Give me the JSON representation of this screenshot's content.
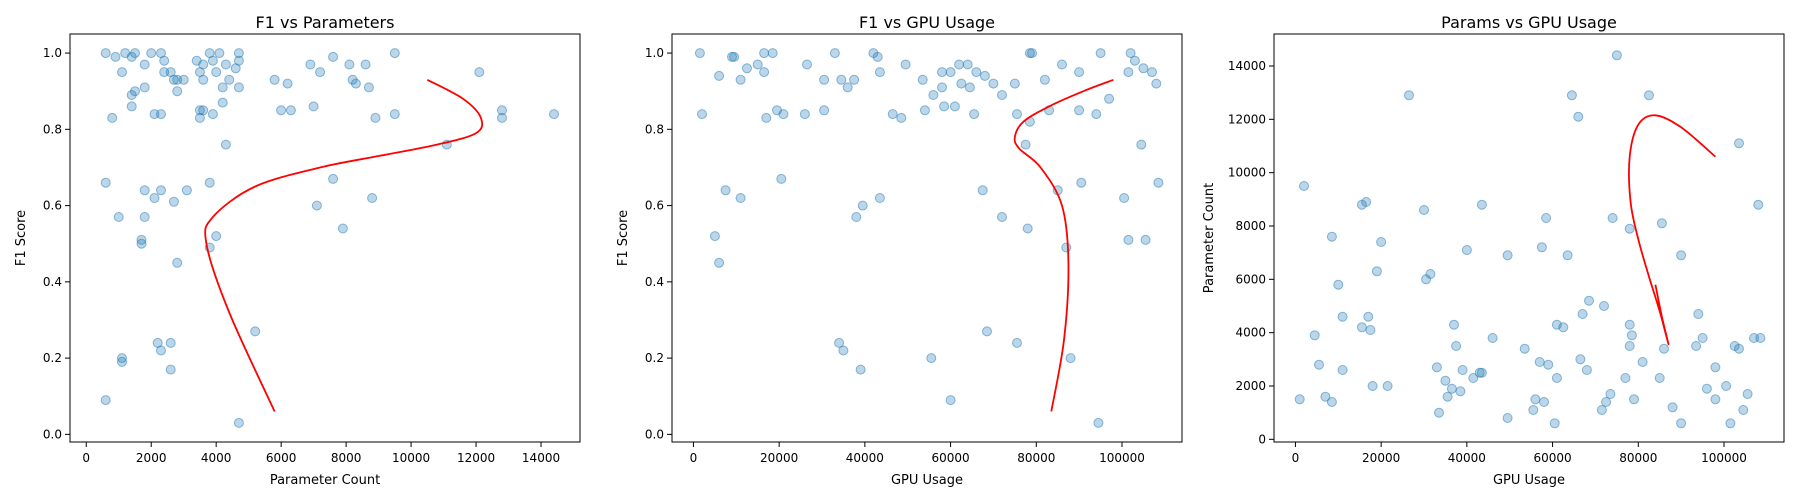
{
  "chart_data": [
    {
      "type": "scatter",
      "title": "F1 vs Parameters",
      "xlabel": "Parameter Count",
      "ylabel": "F1 Score",
      "xlim": [
        -500,
        15200
      ],
      "ylim": [
        -0.02,
        1.05
      ],
      "xticks": [
        0,
        2000,
        4000,
        6000,
        8000,
        10000,
        12000,
        14000
      ],
      "yticks": [
        0.0,
        0.2,
        0.4,
        0.6,
        0.8,
        1.0
      ],
      "ytick_decimals": 1,
      "grid": false,
      "points": [
        [
          600,
          1.0
        ],
        [
          900,
          0.99
        ],
        [
          1200,
          1.0
        ],
        [
          1400,
          0.99
        ],
        [
          1500,
          1.0
        ],
        [
          1800,
          0.97
        ],
        [
          2000,
          1.0
        ],
        [
          2300,
          1.0
        ],
        [
          2400,
          0.98
        ],
        [
          2600,
          0.95
        ],
        [
          2800,
          0.93
        ],
        [
          3400,
          0.98
        ],
        [
          3500,
          0.95
        ],
        [
          3600,
          0.97
        ],
        [
          3800,
          1.0
        ],
        [
          3900,
          0.98
        ],
        [
          4100,
          1.0
        ],
        [
          4300,
          0.97
        ],
        [
          4700,
          1.0
        ],
        [
          4700,
          0.98
        ],
        [
          4600,
          0.96
        ],
        [
          6900,
          0.97
        ],
        [
          7200,
          0.95
        ],
        [
          7600,
          0.99
        ],
        [
          8100,
          0.97
        ],
        [
          8600,
          0.97
        ],
        [
          9500,
          1.0
        ],
        [
          12100,
          0.95
        ],
        [
          1100,
          0.95
        ],
        [
          2700,
          0.93
        ],
        [
          3000,
          0.93
        ],
        [
          3600,
          0.93
        ],
        [
          4000,
          0.95
        ],
        [
          4400,
          0.93
        ],
        [
          5800,
          0.93
        ],
        [
          6200,
          0.92
        ],
        [
          8200,
          0.93
        ],
        [
          8700,
          0.91
        ],
        [
          800,
          0.83
        ],
        [
          1400,
          0.86
        ],
        [
          1400,
          0.89
        ],
        [
          1500,
          0.9
        ],
        [
          1800,
          0.91
        ],
        [
          2100,
          0.84
        ],
        [
          2300,
          0.84
        ],
        [
          2400,
          0.95
        ],
        [
          2800,
          0.9
        ],
        [
          3500,
          0.85
        ],
        [
          3500,
          0.83
        ],
        [
          3600,
          0.85
        ],
        [
          3900,
          0.84
        ],
        [
          4200,
          0.87
        ],
        [
          4200,
          0.91
        ],
        [
          4700,
          0.91
        ],
        [
          6000,
          0.85
        ],
        [
          6300,
          0.85
        ],
        [
          7000,
          0.86
        ],
        [
          8300,
          0.92
        ],
        [
          8900,
          0.83
        ],
        [
          9500,
          0.84
        ],
        [
          12800,
          0.85
        ],
        [
          12800,
          0.83
        ],
        [
          14400,
          0.84
        ],
        [
          4300,
          0.76
        ],
        [
          11100,
          0.76
        ],
        [
          600,
          0.66
        ],
        [
          1800,
          0.64
        ],
        [
          2300,
          0.64
        ],
        [
          3100,
          0.64
        ],
        [
          3800,
          0.66
        ],
        [
          7600,
          0.67
        ],
        [
          1000,
          0.57
        ],
        [
          1800,
          0.57
        ],
        [
          2100,
          0.62
        ],
        [
          2700,
          0.61
        ],
        [
          7100,
          0.6
        ],
        [
          8800,
          0.62
        ],
        [
          1700,
          0.51
        ],
        [
          1700,
          0.5
        ],
        [
          4000,
          0.52
        ],
        [
          3800,
          0.49
        ],
        [
          2800,
          0.45
        ],
        [
          7900,
          0.54
        ],
        [
          2200,
          0.24
        ],
        [
          2300,
          0.22
        ],
        [
          2600,
          0.24
        ],
        [
          5200,
          0.27
        ],
        [
          1100,
          0.2
        ],
        [
          1100,
          0.19
        ],
        [
          2600,
          0.17
        ],
        [
          600,
          0.09
        ],
        [
          4700,
          0.03
        ]
      ],
      "fit_curve": [
        [
          5800,
          0.06
        ],
        [
          4400,
          0.32
        ],
        [
          3700,
          0.5
        ],
        [
          3900,
          0.57
        ],
        [
          5200,
          0.65
        ],
        [
          7200,
          0.7
        ],
        [
          9000,
          0.73
        ],
        [
          10800,
          0.76
        ],
        [
          12000,
          0.79
        ],
        [
          12150,
          0.83
        ],
        [
          11600,
          0.88
        ],
        [
          10500,
          0.93
        ]
      ]
    },
    {
      "type": "scatter",
      "title": "F1 vs GPU Usage",
      "xlabel": "GPU Usage",
      "ylabel": "F1 Score",
      "xlim": [
        -5000,
        114000
      ],
      "ylim": [
        -0.02,
        1.05
      ],
      "xticks": [
        0,
        20000,
        40000,
        60000,
        80000,
        100000
      ],
      "yticks": [
        0.0,
        0.2,
        0.4,
        0.6,
        0.8,
        1.0
      ],
      "ytick_decimals": 1,
      "grid": false,
      "points": [
        [
          1500,
          1.0
        ],
        [
          9000,
          0.99
        ],
        [
          9500,
          0.99
        ],
        [
          16500,
          1.0
        ],
        [
          18500,
          1.0
        ],
        [
          33000,
          1.0
        ],
        [
          42000,
          1.0
        ],
        [
          43000,
          0.99
        ],
        [
          49500,
          0.97
        ],
        [
          56000,
          0.89
        ],
        [
          58000,
          0.95
        ],
        [
          60000,
          0.95
        ],
        [
          62000,
          0.97
        ],
        [
          64000,
          0.97
        ],
        [
          66000,
          0.95
        ],
        [
          68000,
          0.94
        ],
        [
          70000,
          0.92
        ],
        [
          72000,
          0.89
        ],
        [
          75000,
          0.92
        ],
        [
          78500,
          1.0
        ],
        [
          79000,
          1.0
        ],
        [
          86000,
          0.97
        ],
        [
          90000,
          0.95
        ],
        [
          95000,
          1.0
        ],
        [
          102000,
          1.0
        ],
        [
          103000,
          0.98
        ],
        [
          105000,
          0.96
        ],
        [
          107000,
          0.95
        ],
        [
          6000,
          0.94
        ],
        [
          11000,
          0.93
        ],
        [
          12500,
          0.96
        ],
        [
          15000,
          0.97
        ],
        [
          16500,
          0.95
        ],
        [
          26500,
          0.97
        ],
        [
          30500,
          0.93
        ],
        [
          34500,
          0.93
        ],
        [
          37500,
          0.93
        ],
        [
          43500,
          0.95
        ],
        [
          53500,
          0.93
        ],
        [
          58000,
          0.91
        ],
        [
          61000,
          0.86
        ],
        [
          62500,
          0.92
        ],
        [
          64500,
          0.91
        ],
        [
          2000,
          0.84
        ],
        [
          17000,
          0.83
        ],
        [
          19500,
          0.85
        ],
        [
          21000,
          0.84
        ],
        [
          26000,
          0.84
        ],
        [
          30500,
          0.85
        ],
        [
          36000,
          0.91
        ],
        [
          46500,
          0.84
        ],
        [
          48500,
          0.83
        ],
        [
          54000,
          0.85
        ],
        [
          58500,
          0.86
        ],
        [
          65500,
          0.84
        ],
        [
          75500,
          0.84
        ],
        [
          78500,
          0.82
        ],
        [
          82000,
          0.93
        ],
        [
          83000,
          0.85
        ],
        [
          90000,
          0.85
        ],
        [
          94000,
          0.84
        ],
        [
          97000,
          0.88
        ],
        [
          101500,
          0.95
        ],
        [
          104500,
          0.76
        ],
        [
          108000,
          0.92
        ],
        [
          77500,
          0.76
        ],
        [
          7500,
          0.64
        ],
        [
          20500,
          0.67
        ],
        [
          67500,
          0.64
        ],
        [
          85000,
          0.64
        ],
        [
          90500,
          0.66
        ],
        [
          108500,
          0.66
        ],
        [
          5000,
          0.52
        ],
        [
          11000,
          0.62
        ],
        [
          38000,
          0.57
        ],
        [
          39500,
          0.6
        ],
        [
          43500,
          0.62
        ],
        [
          72000,
          0.57
        ],
        [
          78000,
          0.54
        ],
        [
          87000,
          0.49
        ],
        [
          100500,
          0.62
        ],
        [
          101500,
          0.51
        ],
        [
          105500,
          0.51
        ],
        [
          6000,
          0.45
        ],
        [
          34000,
          0.24
        ],
        [
          35000,
          0.22
        ],
        [
          39000,
          0.17
        ],
        [
          55500,
          0.2
        ],
        [
          60000,
          0.09
        ],
        [
          68500,
          0.27
        ],
        [
          75500,
          0.24
        ],
        [
          88000,
          0.2
        ],
        [
          94500,
          0.03
        ]
      ],
      "fit_curve": [
        [
          83500,
          0.06
        ],
        [
          86500,
          0.25
        ],
        [
          87500,
          0.45
        ],
        [
          86000,
          0.6
        ],
        [
          81000,
          0.7
        ],
        [
          76000,
          0.75
        ],
        [
          75000,
          0.78
        ],
        [
          77000,
          0.82
        ],
        [
          83000,
          0.86
        ],
        [
          91000,
          0.9
        ],
        [
          98000,
          0.93
        ]
      ]
    },
    {
      "type": "scatter",
      "title": "Params vs GPU Usage",
      "xlabel": "GPU Usage",
      "ylabel": "Parameter Count",
      "xlim": [
        -5000,
        114000
      ],
      "ylim": [
        -100,
        15200
      ],
      "xticks": [
        0,
        20000,
        40000,
        60000,
        80000,
        100000
      ],
      "yticks": [
        0,
        2000,
        4000,
        6000,
        8000,
        10000,
        12000,
        14000
      ],
      "ytick_decimals": 0,
      "grid": false,
      "points": [
        [
          75000,
          14400
        ],
        [
          64500,
          12900
        ],
        [
          26500,
          12900
        ],
        [
          82500,
          12900
        ],
        [
          66000,
          12100
        ],
        [
          103500,
          11100
        ],
        [
          2000,
          9500
        ],
        [
          16500,
          8900
        ],
        [
          15500,
          8800
        ],
        [
          30000,
          8600
        ],
        [
          43500,
          8800
        ],
        [
          58500,
          8300
        ],
        [
          74000,
          8300
        ],
        [
          85500,
          8100
        ],
        [
          78000,
          7900
        ],
        [
          108000,
          8800
        ],
        [
          8500,
          7600
        ],
        [
          20000,
          7400
        ],
        [
          40000,
          7100
        ],
        [
          49500,
          6900
        ],
        [
          57500,
          7200
        ],
        [
          63500,
          6900
        ],
        [
          90000,
          6900
        ],
        [
          10000,
          5800
        ],
        [
          19000,
          6300
        ],
        [
          30500,
          6000
        ],
        [
          31500,
          6200
        ],
        [
          68500,
          5200
        ],
        [
          11000,
          4600
        ],
        [
          17000,
          4600
        ],
        [
          15500,
          4200
        ],
        [
          37000,
          4300
        ],
        [
          61000,
          4300
        ],
        [
          62500,
          4200
        ],
        [
          67000,
          4700
        ],
        [
          72000,
          5000
        ],
        [
          78000,
          4300
        ],
        [
          78500,
          3900
        ],
        [
          86000,
          3400
        ],
        [
          94000,
          4700
        ],
        [
          95000,
          3800
        ],
        [
          98000,
          2700
        ],
        [
          4500,
          3900
        ],
        [
          5500,
          2800
        ],
        [
          7000,
          1600
        ],
        [
          8500,
          1400
        ],
        [
          11000,
          2600
        ],
        [
          17500,
          4100
        ],
        [
          18000,
          2000
        ],
        [
          21500,
          2000
        ],
        [
          33000,
          2700
        ],
        [
          35000,
          2200
        ],
        [
          36500,
          1900
        ],
        [
          37500,
          3500
        ],
        [
          38500,
          1800
        ],
        [
          39000,
          2600
        ],
        [
          41500,
          2300
        ],
        [
          43000,
          2500
        ],
        [
          43500,
          2500
        ],
        [
          46000,
          3800
        ],
        [
          53500,
          3400
        ],
        [
          56000,
          1500
        ],
        [
          57000,
          2900
        ],
        [
          58000,
          1400
        ],
        [
          59000,
          2800
        ],
        [
          61000,
          2300
        ],
        [
          66500,
          3000
        ],
        [
          68000,
          2600
        ],
        [
          72500,
          1400
        ],
        [
          73500,
          1700
        ],
        [
          77000,
          2300
        ],
        [
          78000,
          3500
        ],
        [
          81000,
          2900
        ],
        [
          85000,
          2300
        ],
        [
          88000,
          1200
        ],
        [
          93500,
          3500
        ],
        [
          98000,
          1500
        ],
        [
          100500,
          2000
        ],
        [
          101500,
          600
        ],
        [
          102500,
          3500
        ],
        [
          103500,
          3400
        ],
        [
          104500,
          1100
        ],
        [
          105500,
          1700
        ],
        [
          107000,
          3800
        ],
        [
          108500,
          3800
        ],
        [
          1000,
          1500
        ],
        [
          33500,
          1000
        ],
        [
          35500,
          1600
        ],
        [
          49500,
          800
        ],
        [
          55500,
          1100
        ],
        [
          60500,
          600
        ],
        [
          71500,
          1100
        ],
        [
          79000,
          1500
        ],
        [
          90000,
          600
        ],
        [
          96000,
          1900
        ]
      ],
      "fit_curve": [
        [
          98000,
          10600
        ],
        [
          90000,
          11700
        ],
        [
          84000,
          12150
        ],
        [
          80000,
          11800
        ],
        [
          78000,
          10600
        ],
        [
          78200,
          8900
        ],
        [
          80000,
          7500
        ],
        [
          82500,
          6100
        ],
        [
          85000,
          4800
        ],
        [
          86500,
          3900
        ],
        [
          87000,
          3600
        ],
        [
          85500,
          4600
        ],
        [
          84000,
          5800
        ]
      ]
    }
  ]
}
